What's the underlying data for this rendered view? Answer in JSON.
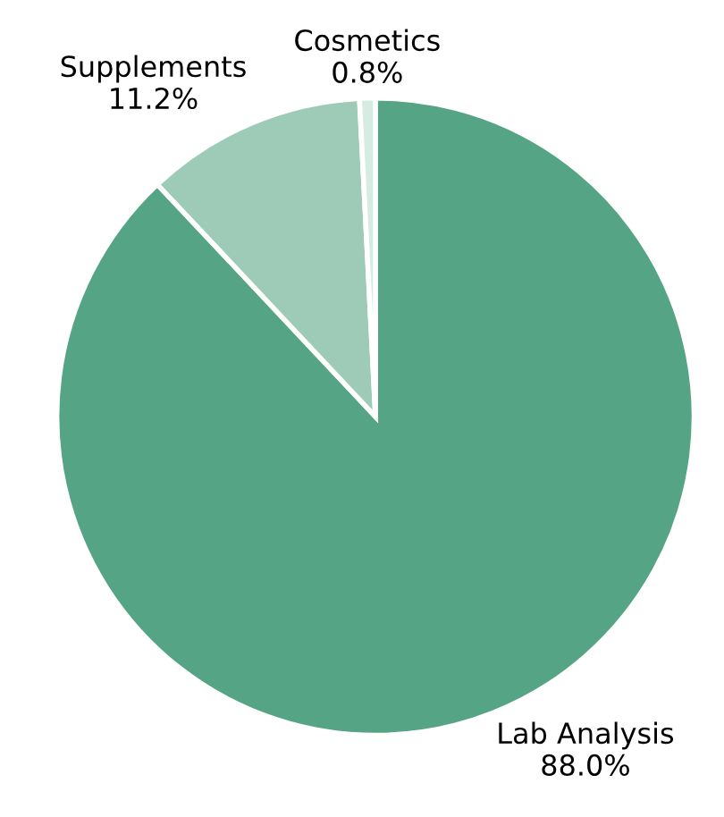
{
  "chart_data": {
    "type": "pie",
    "categories": [
      "Lab Analysis",
      "Supplements",
      "Cosmetics"
    ],
    "values": [
      88.0,
      11.2,
      0.8
    ],
    "value_labels": [
      "88.0%",
      "11.2%",
      "0.8%"
    ],
    "colors": [
      "#56a486",
      "#9ecbb8",
      "#d6ebe2"
    ]
  }
}
